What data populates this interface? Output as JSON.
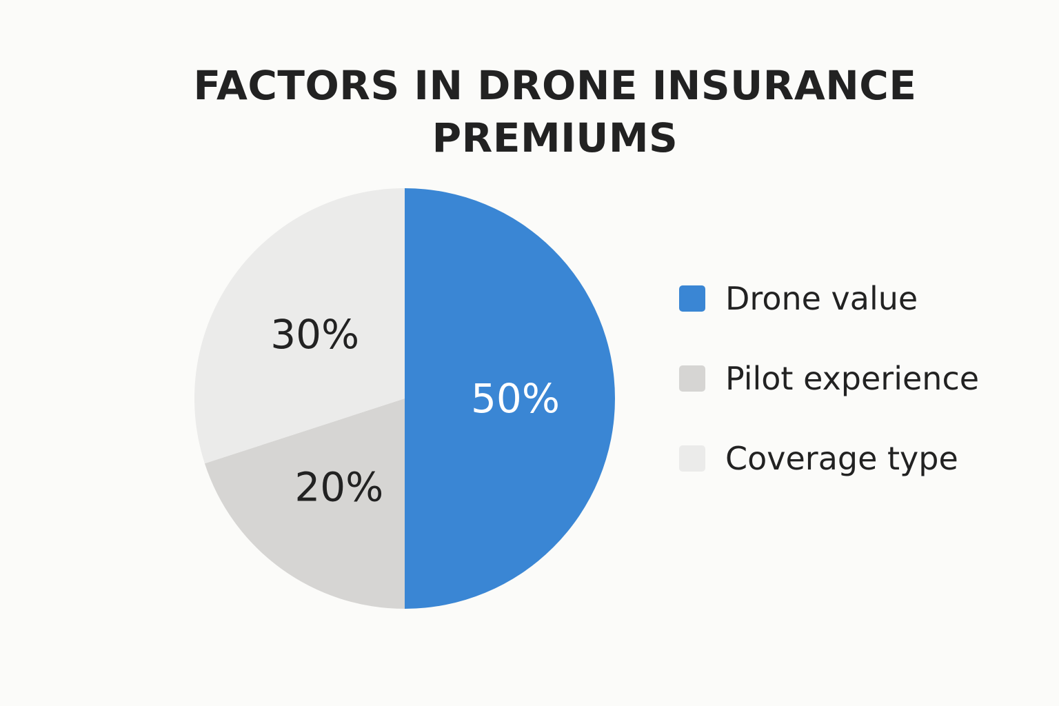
{
  "chart_data": {
    "type": "pie",
    "title": "FACTORS IN DRONE INSURANCE PREMIUMS",
    "title_lines": [
      "FACTORS IN DRONE INSURANCE",
      "PREMIUMS"
    ],
    "categories": [
      "Drone value",
      "Pilot experience",
      "Coverage type"
    ],
    "values": [
      50,
      20,
      30
    ],
    "value_labels": [
      "50%",
      "20%",
      "30%"
    ],
    "colors": [
      "#3a86d4",
      "#d6d5d3",
      "#ebebea"
    ],
    "label_colors": [
      "#ffffff",
      "#222222",
      "#222222"
    ],
    "start_angle": "12 o'clock",
    "direction": "clockwise",
    "legend": {
      "position": "right",
      "items": [
        {
          "label": "Drone value",
          "color": "#3a86d4"
        },
        {
          "label": "Pilot experience",
          "color": "#d6d5d3"
        },
        {
          "label": "Coverage type",
          "color": "#ebebea"
        }
      ]
    }
  }
}
